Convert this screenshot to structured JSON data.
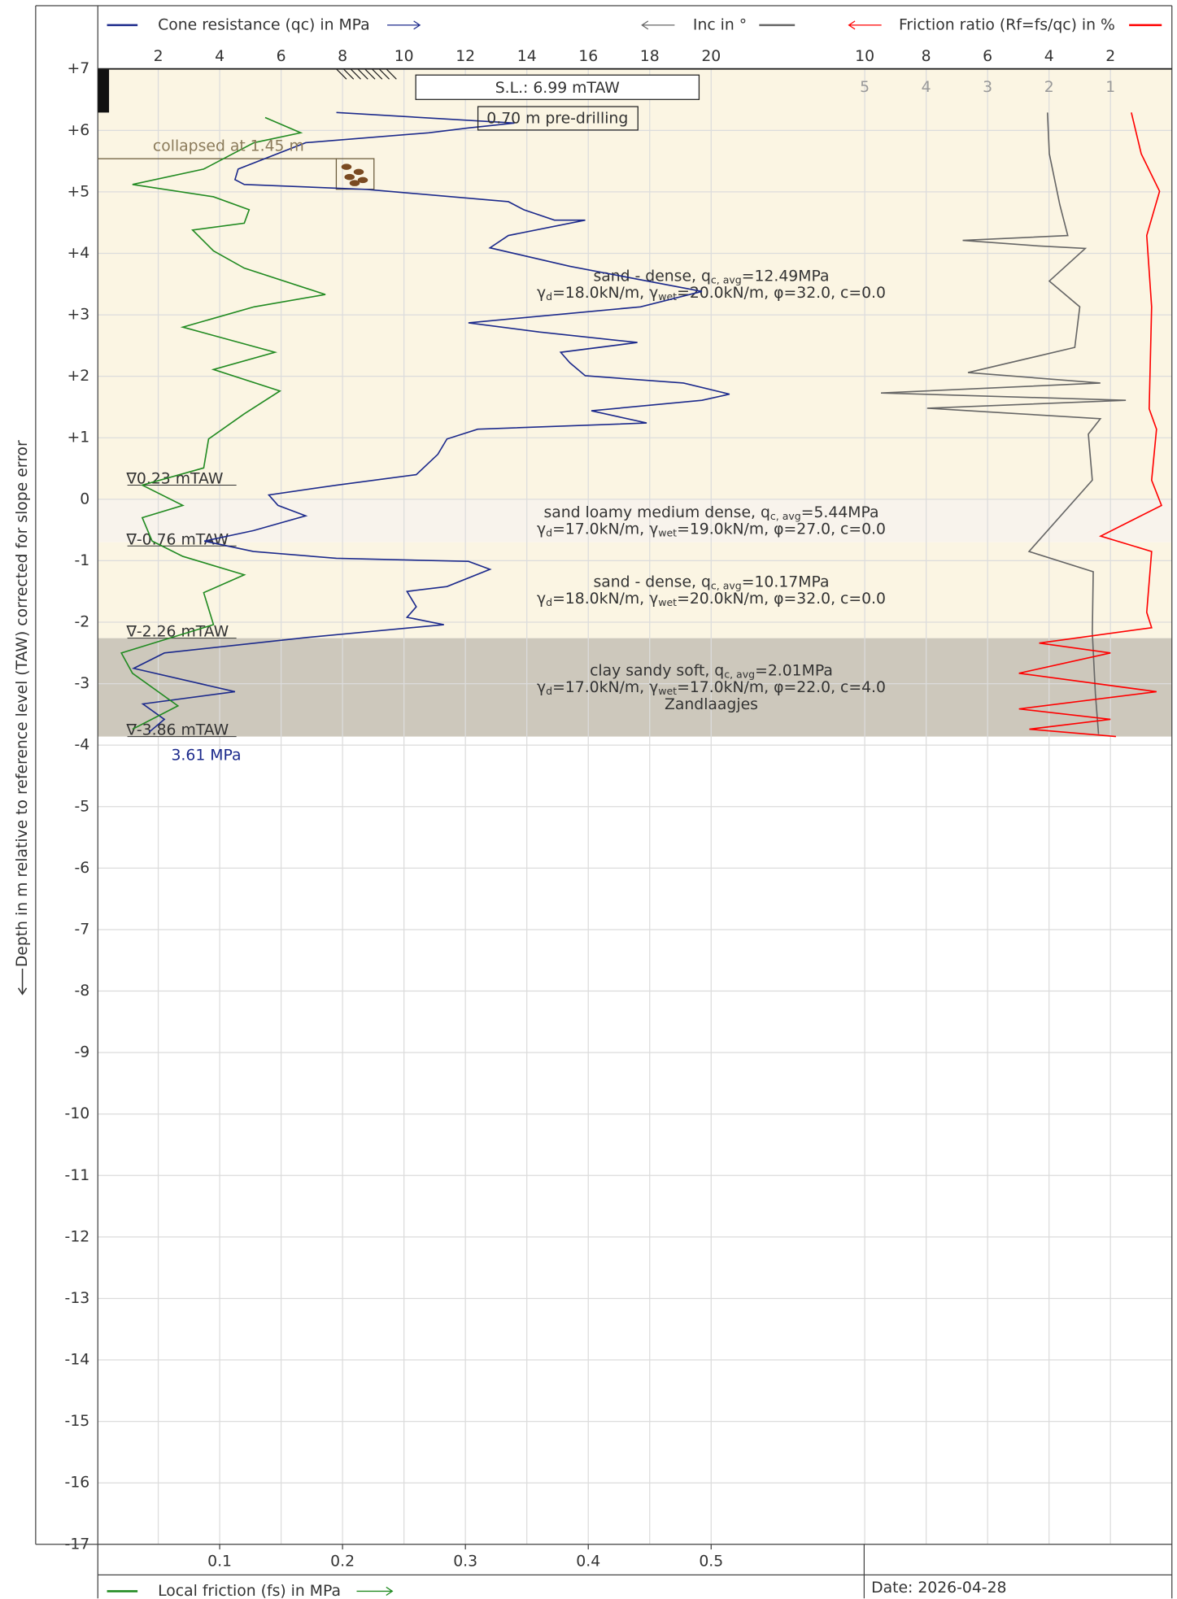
{
  "chart_data": {
    "type": "cpt",
    "ylabel": "Depth in m relative to reference level (TAW) corrected for slope error",
    "ylim": [
      7,
      -17
    ],
    "yticks": [
      {
        "value": 7,
        "label": "+7"
      },
      {
        "value": 6,
        "label": "+6"
      },
      {
        "value": 5,
        "label": "+5"
      },
      {
        "value": 4,
        "label": "+4"
      },
      {
        "value": 3,
        "label": "+3"
      },
      {
        "value": 2,
        "label": "+2"
      },
      {
        "value": 1,
        "label": "+1"
      },
      0,
      -1,
      -2,
      -3,
      -4,
      -5,
      -6,
      -7,
      -8,
      -9,
      -10,
      -11,
      -12,
      -13,
      -14,
      -15,
      -16,
      -17
    ],
    "grid": true,
    "axes": {
      "qc": {
        "xlim": [
          0,
          35
        ],
        "xticks": [
          2,
          4,
          6,
          8,
          10,
          12,
          14,
          16,
          18,
          20
        ]
      },
      "fs": {
        "xlim": [
          0,
          0.875
        ],
        "xticks": [
          0.1,
          0.2,
          0.3,
          0.4,
          0.5
        ]
      },
      "inc": {
        "xlim": [
          35,
          0
        ],
        "xticks": [
          10,
          8,
          6,
          4,
          2
        ]
      },
      "rf": {
        "xlim": [
          17.5,
          0
        ],
        "xticks": [
          5,
          4,
          3,
          2,
          1
        ]
      }
    },
    "series": [
      {
        "name": "Cone resistance (qc) in MPa",
        "color": "#1c2a8c",
        "axis": "qc",
        "values": [
          7.8,
          13.6,
          12.1,
          10.8,
          6.8,
          4.6,
          4.5,
          4.8,
          8.8,
          13.4,
          13.9,
          14.9,
          15.9,
          13.4,
          12.8,
          15.4,
          19.7,
          17.7,
          12.1,
          14.4,
          17.6,
          15.1,
          15.4,
          15.9,
          19.1,
          20.6,
          19.7,
          16.1,
          17.9,
          12.4,
          11.4,
          11.1,
          10.4,
          7.8,
          5.6,
          5.9,
          6.8,
          5.1,
          3.5,
          5.1,
          7.8,
          12.1,
          12.8,
          11.4,
          10.1,
          10.4,
          10.1,
          11.3,
          6.8,
          2.2,
          1.2,
          4.5,
          1.5,
          2.2,
          1.7
        ],
        "depth": [
          6.29,
          6.12,
          6.04,
          5.96,
          5.8,
          5.37,
          5.2,
          5.12,
          5.04,
          4.84,
          4.71,
          4.54,
          4.54,
          4.29,
          4.09,
          3.79,
          3.38,
          3.13,
          2.87,
          2.72,
          2.55,
          2.39,
          2.22,
          2.01,
          1.89,
          1.71,
          1.61,
          1.44,
          1.24,
          1.14,
          0.98,
          0.73,
          0.4,
          0.23,
          0.07,
          -0.1,
          -0.27,
          -0.51,
          -0.68,
          -0.85,
          -0.96,
          -1.01,
          -1.14,
          -1.42,
          -1.5,
          -1.75,
          -1.92,
          -2.04,
          -2.25,
          -2.5,
          -2.75,
          -3.13,
          -3.33,
          -3.58,
          -3.79
        ]
      },
      {
        "name": "Local friction (fs) in MPa",
        "color": "#228b22",
        "axis": "fs",
        "values": [
          0.137,
          0.166,
          0.128,
          0.087,
          0.029,
          0.095,
          0.124,
          0.12,
          0.078,
          0.095,
          0.12,
          0.186,
          0.128,
          0.07,
          0.145,
          0.095,
          0.149,
          0.12,
          0.091,
          0.087,
          0.037,
          0.07,
          0.037,
          0.045,
          0.07,
          0.12,
          0.087,
          0.095,
          0.02,
          0.029,
          0.066,
          0.029
        ],
        "depth": [
          6.21,
          5.96,
          5.8,
          5.37,
          5.12,
          4.92,
          4.71,
          4.49,
          4.38,
          4.04,
          3.76,
          3.33,
          3.13,
          2.8,
          2.39,
          2.11,
          1.76,
          1.39,
          0.98,
          0.51,
          0.23,
          -0.1,
          -0.3,
          -0.68,
          -0.93,
          -1.23,
          -1.52,
          -2.04,
          -2.5,
          -2.83,
          -3.36,
          -3.74
        ]
      },
      {
        "name": "Inc in °",
        "color": "#666666",
        "axis": "inc",
        "values": [
          4.05,
          3.99,
          3.65,
          3.39,
          6.81,
          4.32,
          2.82,
          3.99,
          3.0,
          3.16,
          6.64,
          2.33,
          9.47,
          1.5,
          7.97,
          2.33,
          2.72,
          2.59,
          4.65,
          2.56,
          2.59,
          2.49,
          2.39
        ],
        "depth": [
          6.29,
          5.62,
          4.79,
          4.29,
          4.21,
          4.12,
          4.08,
          3.55,
          3.13,
          2.47,
          2.06,
          1.89,
          1.73,
          1.61,
          1.48,
          1.31,
          1.06,
          0.31,
          -0.85,
          -1.18,
          -2.17,
          -3.16,
          -3.82
        ]
      },
      {
        "name": "Friction ratio (Rf=fs/qc) in %",
        "color": "#ff0000",
        "axis": "rf",
        "values": [
          0.66,
          0.5,
          0.2,
          0.41,
          0.33,
          0.37,
          0.25,
          0.33,
          0.17,
          1.16,
          0.33,
          0.41,
          0.33,
          2.16,
          1.0,
          2.49,
          0.25,
          2.49,
          1.0,
          2.32,
          0.91
        ],
        "depth": [
          6.29,
          5.62,
          5.01,
          4.29,
          3.13,
          1.47,
          1.14,
          0.31,
          -0.1,
          -0.6,
          -0.85,
          -1.84,
          -2.09,
          -2.34,
          -2.5,
          -2.83,
          -3.13,
          -3.41,
          -3.58,
          -3.74,
          -3.86
        ]
      }
    ],
    "layers": [
      {
        "top": 6.99,
        "bottom": 0,
        "color": "#fbf5e3",
        "lines": [
          [
            "sand - dense, q",
            "c, avg",
            "=12.49MPa"
          ],
          [
            "γ",
            "d",
            "=18.0kN/m, γ",
            "wet",
            "=20.0kN/m, φ=32.0, c=0.0"
          ]
        ]
      },
      {
        "top": 0,
        "bottom": -0.7,
        "color": "#f8f3ec",
        "lines": [
          [
            "sand loamy medium dense, q",
            "c, avg",
            "=5.44MPa"
          ],
          [
            "γ",
            "d",
            "=17.0kN/m, γ",
            "wet",
            "=19.0kN/m, φ=27.0, c=0.0"
          ]
        ]
      },
      {
        "top": -0.7,
        "bottom": -2.26,
        "color": "#fbf5e3",
        "lines": [
          [
            "sand - dense, q",
            "c, avg",
            "=10.17MPa"
          ],
          [
            "γ",
            "d",
            "=18.0kN/m, γ",
            "wet",
            "=20.0kN/m, φ=32.0, c=0.0"
          ]
        ]
      },
      {
        "top": -2.26,
        "bottom": -3.86,
        "color": "#cdc8bc",
        "lines": [
          [
            "clay sandy soft, q",
            "c, avg",
            "=2.01MPa"
          ],
          [
            "γ",
            "d",
            "=17.0kN/m, γ",
            "wet",
            "=17.0kN/m, φ=22.0, c=4.0"
          ],
          [
            "Zandlaagjes"
          ]
        ]
      }
    ],
    "water_levels": [
      {
        "value": 0.23,
        "label": "∇0.23 mTAW"
      },
      {
        "value": -0.76,
        "label": "∇-0.76 mTAW"
      },
      {
        "value": -2.26,
        "label": "∇-2.26 mTAW"
      },
      {
        "value": -3.86,
        "label": "∇-3.86 mTAW"
      }
    ],
    "surface_level": {
      "value": 6.99,
      "label": "S.L.: 6.99 mTAW"
    },
    "predrilling": {
      "value": 0.7,
      "label": "0.70 m pre-drilling"
    },
    "collapsed": {
      "value": 1.45,
      "label": "collapsed at 1.45 m"
    },
    "end_note": "3.61 MPa",
    "date": "Date: 2026-04-28"
  }
}
